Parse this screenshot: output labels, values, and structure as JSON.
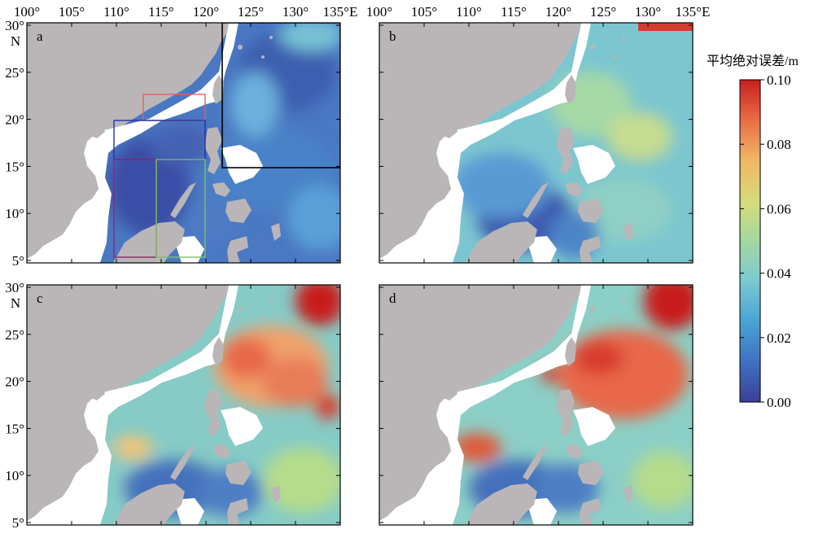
{
  "figure": {
    "panels": [
      {
        "id": "a",
        "label": "a"
      },
      {
        "id": "b",
        "label": "b"
      },
      {
        "id": "c",
        "label": "c"
      },
      {
        "id": "d",
        "label": "d"
      }
    ],
    "lon_ticks": [
      "100°",
      "105°",
      "110°",
      "115°",
      "120°",
      "125°",
      "130°",
      "135°E"
    ],
    "lat_ticks": [
      "30°",
      "25°",
      "20°",
      "15°",
      "10°",
      "5°"
    ],
    "lat_hemisphere": "N",
    "colors": {
      "land": "#bab6b8",
      "nodata": "#ffffff",
      "scale": [
        "#3b3f97",
        "#3e6fbf",
        "#4aa3d6",
        "#7ccbd0",
        "#b5dc8a",
        "#f0cf72",
        "#f08d55",
        "#d83a2f",
        "#c81e1e"
      ]
    }
  },
  "colorbar": {
    "title": "平均绝对误差/m",
    "ticks": [
      "0.10",
      "0.08",
      "0.06",
      "0.04",
      "0.02",
      "0.00"
    ],
    "range": [
      0.0,
      0.1
    ]
  }
}
